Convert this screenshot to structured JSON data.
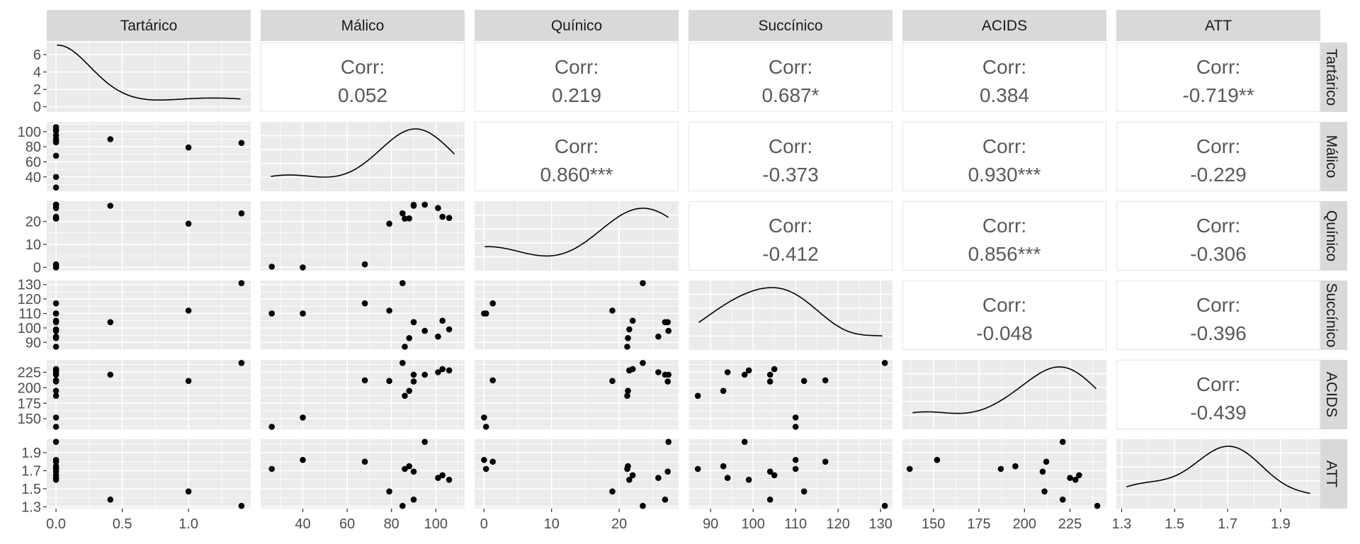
{
  "chart_data": {
    "type": "scatter",
    "variables": [
      "Tartárico",
      "Málico",
      "Quínico",
      "Succínico",
      "ACIDS",
      "ATT"
    ],
    "corr_label": "Corr:",
    "correlations": [
      {
        "row": 0,
        "col": 1,
        "text": "0.052"
      },
      {
        "row": 0,
        "col": 2,
        "text": "0.219"
      },
      {
        "row": 0,
        "col": 3,
        "text": "0.687*"
      },
      {
        "row": 0,
        "col": 4,
        "text": "0.384"
      },
      {
        "row": 0,
        "col": 5,
        "text": "-0.719**"
      },
      {
        "row": 1,
        "col": 2,
        "text": "0.860***"
      },
      {
        "row": 1,
        "col": 3,
        "text": "-0.373"
      },
      {
        "row": 1,
        "col": 4,
        "text": "0.930***"
      },
      {
        "row": 1,
        "col": 5,
        "text": "-0.229"
      },
      {
        "row": 2,
        "col": 3,
        "text": "-0.412"
      },
      {
        "row": 2,
        "col": 4,
        "text": "0.856***"
      },
      {
        "row": 2,
        "col": 5,
        "text": "-0.306"
      },
      {
        "row": 3,
        "col": 4,
        "text": "-0.048"
      },
      {
        "row": 3,
        "col": 5,
        "text": "-0.396"
      },
      {
        "row": 4,
        "col": 5,
        "text": "-0.439"
      }
    ],
    "x_axes": [
      {
        "lim": [
          -0.07,
          1.47
        ],
        "ticks": [
          0.0,
          0.5,
          1.0
        ],
        "labels": [
          "0.0",
          "0.5",
          "1.0"
        ]
      },
      {
        "lim": [
          21,
          113
        ],
        "ticks": [
          40,
          60,
          80,
          100
        ],
        "labels": [
          "40",
          "60",
          "80",
          "100"
        ]
      },
      {
        "lim": [
          -1.4,
          28.8
        ],
        "ticks": [
          0,
          10,
          20
        ],
        "labels": [
          "0",
          "10",
          "20"
        ]
      },
      {
        "lim": [
          84.8,
          132.8
        ],
        "ticks": [
          90,
          100,
          110,
          120,
          130
        ],
        "labels": [
          "90",
          "100",
          "110",
          "120",
          "130"
        ]
      },
      {
        "lim": [
          133,
          245
        ],
        "ticks": [
          150,
          175,
          200,
          225
        ],
        "labels": [
          "150",
          "175",
          "200",
          "225"
        ]
      },
      {
        "lim": [
          1.28,
          2.05
        ],
        "ticks": [
          1.3,
          1.5,
          1.7,
          1.9
        ],
        "labels": [
          "1.3",
          "1.5",
          "1.7",
          "1.9"
        ]
      }
    ],
    "y_axes": [
      {
        "lim": [
          -0.6,
          7.4
        ],
        "ticks": [
          0,
          2,
          4,
          6
        ],
        "labels": [
          "0",
          "2",
          "4",
          "6"
        ]
      },
      {
        "lim": [
          21,
          113
        ],
        "ticks": [
          40,
          60,
          80,
          100
        ],
        "labels": [
          "40",
          "60",
          "80",
          "100"
        ]
      },
      {
        "lim": [
          -1.4,
          28.8
        ],
        "ticks": [
          0,
          10,
          20
        ],
        "labels": [
          "0",
          "10",
          "20"
        ]
      },
      {
        "lim": [
          84.8,
          132.8
        ],
        "ticks": [
          90,
          100,
          110,
          120,
          130
        ],
        "labels": [
          "90",
          "100",
          "110",
          "120",
          "130"
        ]
      },
      {
        "lim": [
          133,
          245
        ],
        "ticks": [
          150,
          175,
          200,
          225
        ],
        "labels": [
          "150",
          "175",
          "200",
          "225"
        ]
      },
      {
        "lim": [
          1.28,
          2.05
        ],
        "ticks": [
          1.3,
          1.5,
          1.7,
          1.9
        ],
        "labels": [
          "1.3",
          "1.5",
          "1.7",
          "1.9"
        ]
      }
    ],
    "observations": [
      {
        "Tartárico": 0.0,
        "Málico": 106,
        "Quínico": 21.5,
        "Succínico": 99,
        "ACIDS": 228,
        "ATT": 1.6
      },
      {
        "Tartárico": 0.0,
        "Málico": 101,
        "Quínico": 25.8,
        "Succínico": 94,
        "ACIDS": 225,
        "ATT": 1.62
      },
      {
        "Tartárico": 0.0,
        "Málico": 103,
        "Quínico": 22.0,
        "Succínico": 105,
        "ACIDS": 230,
        "ATT": 1.65
      },
      {
        "Tartárico": 0.0,
        "Málico": 95,
        "Quínico": 27.3,
        "Succínico": 98,
        "ACIDS": 221,
        "ATT": 2.02
      },
      {
        "Tartárico": 0.0,
        "Málico": 90,
        "Quínico": 27.2,
        "Succínico": 104,
        "ACIDS": 210,
        "ATT": 1.69
      },
      {
        "Tartárico": 0.0,
        "Málico": 88,
        "Quínico": 21.3,
        "Succínico": 93,
        "ACIDS": 195,
        "ATT": 1.75
      },
      {
        "Tartárico": 0.0,
        "Málico": 86,
        "Quínico": 21.2,
        "Succínico": 87,
        "ACIDS": 187,
        "ATT": 1.72
      },
      {
        "Tartárico": 0.0,
        "Málico": 68,
        "Quínico": 1.3,
        "Succínico": 117,
        "ACIDS": 212,
        "ATT": 1.8
      },
      {
        "Tartárico": 0.0,
        "Málico": 40,
        "Quínico": 0.0,
        "Succínico": 110,
        "ACIDS": 152,
        "ATT": 1.82
      },
      {
        "Tartárico": 0.0,
        "Málico": 26,
        "Quínico": 0.3,
        "Succínico": 110,
        "ACIDS": 137,
        "ATT": 1.72
      },
      {
        "Tartárico": 0.41,
        "Málico": 90,
        "Quínico": 26.8,
        "Succínico": 104,
        "ACIDS": 221,
        "ATT": 1.38
      },
      {
        "Tartárico": 1.0,
        "Málico": 79,
        "Quínico": 19.0,
        "Succínico": 112,
        "ACIDS": 211,
        "ATT": 1.47
      },
      {
        "Tartárico": 1.4,
        "Málico": 85,
        "Quínico": 23.5,
        "Succínico": 131,
        "ACIDS": 240,
        "ATT": 1.31
      }
    ]
  }
}
